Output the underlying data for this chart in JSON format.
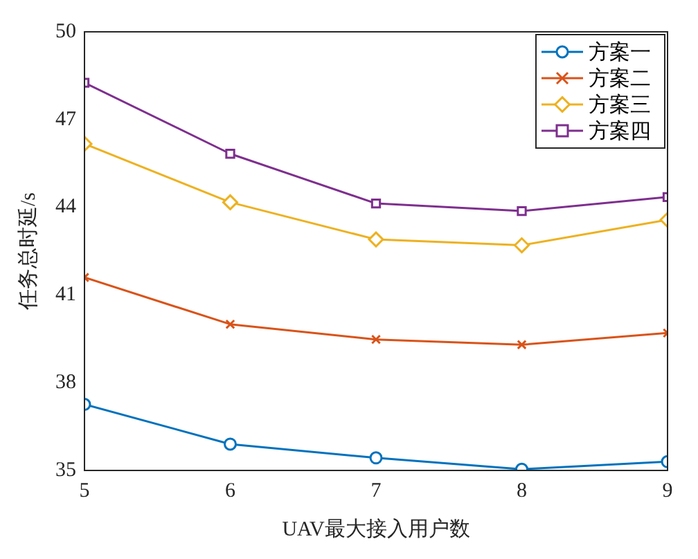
{
  "chart_data": {
    "type": "line",
    "xlabel": "UAV最大接入用户数",
    "ylabel": "任务总时延/s",
    "x": [
      5,
      6,
      7,
      8,
      9
    ],
    "xlim": [
      5,
      9
    ],
    "xticks": [
      5,
      6,
      7,
      8,
      9
    ],
    "ylim": [
      35,
      50
    ],
    "yticks": [
      35,
      38,
      41,
      44,
      47,
      50
    ],
    "grid": false,
    "legend": "top right",
    "line_style": "solid",
    "series": [
      {
        "name": "方案一",
        "color": "#0072bd",
        "marker": "circle",
        "values": [
          37.26,
          35.9,
          35.43,
          35.04,
          35.3
        ]
      },
      {
        "name": "方案二",
        "color": "#d95319",
        "marker": "cross",
        "values": [
          41.6,
          40.0,
          39.48,
          39.3,
          39.7
        ]
      },
      {
        "name": "方案三",
        "color": "#edb120",
        "marker": "diamond",
        "values": [
          46.17,
          44.17,
          42.9,
          42.7,
          43.57
        ]
      },
      {
        "name": "方案四",
        "color": "#7e2f8e",
        "marker": "square",
        "values": [
          48.26,
          45.83,
          44.13,
          43.87,
          44.35
        ]
      }
    ]
  }
}
